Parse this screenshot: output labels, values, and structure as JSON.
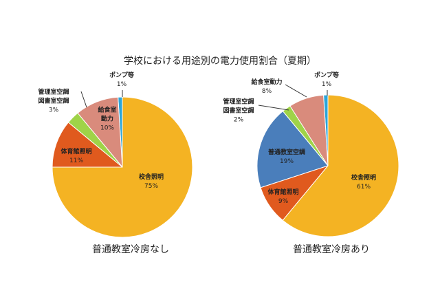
{
  "title": "学校における用途別の電力使用割合（夏期）",
  "chart_data": [
    {
      "type": "pie",
      "caption": "普通教室冷房なし",
      "direction": "clockwise from top",
      "slices": [
        {
          "label": "校舎照明",
          "value": 75,
          "pct": "75%",
          "color": "#F4B323"
        },
        {
          "label": "体育館照明",
          "value": 11,
          "pct": "11%",
          "color": "#E05A1E"
        },
        {
          "label": "管理室空調 図書室空調",
          "value": 3,
          "pct": "3%",
          "color": "#9FD348"
        },
        {
          "label": "給食室動力",
          "value": 10,
          "pct": "10%",
          "color": "#D98B7C"
        },
        {
          "label": "ポンプ等",
          "value": 1,
          "pct": "1%",
          "color": "#2BA5D9"
        }
      ]
    },
    {
      "type": "pie",
      "caption": "普通教室冷房あり",
      "direction": "clockwise from top",
      "slices": [
        {
          "label": "校舎照明",
          "value": 61,
          "pct": "61%",
          "color": "#F4B323"
        },
        {
          "label": "体育館照明",
          "value": 9,
          "pct": "9%",
          "color": "#E05A1E"
        },
        {
          "label": "普通教室空調",
          "value": 19,
          "pct": "19%",
          "color": "#4A7EBB"
        },
        {
          "label": "管理室空調 図書室空調",
          "value": 2,
          "pct": "2%",
          "color": "#9FD348"
        },
        {
          "label": "給食室動力",
          "value": 8,
          "pct": "8%",
          "color": "#D98B7C"
        },
        {
          "label": "ポンプ等",
          "value": 1,
          "pct": "1%",
          "color": "#2BA5D9"
        }
      ]
    }
  ]
}
